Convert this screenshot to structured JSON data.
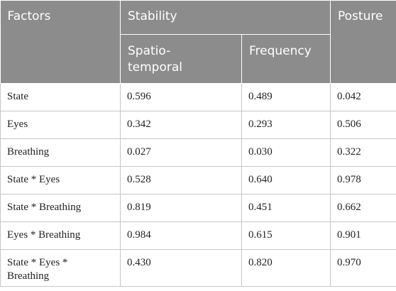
{
  "table": {
    "headers": {
      "factors": "Factors",
      "stability": "Stability",
      "spatio_temporal": "Spatio-\ntemporal",
      "frequency": "Frequency",
      "posture": "Posture"
    },
    "rows": [
      {
        "factor": "State",
        "spatio_temporal": "0.596",
        "frequency": "0.489",
        "posture": "0.042"
      },
      {
        "factor": "Eyes",
        "spatio_temporal": "0.342",
        "frequency": "0.293",
        "posture": "0.506"
      },
      {
        "factor": "Breathing",
        "spatio_temporal": "0.027",
        "frequency": "0.030",
        "posture": "0.322"
      },
      {
        "factor": "State * Eyes",
        "spatio_temporal": "0.528",
        "frequency": "0.640",
        "posture": "0.978"
      },
      {
        "factor": "State * Breathing",
        "spatio_temporal": "0.819",
        "frequency": "0.451",
        "posture": "0.662"
      },
      {
        "factor": "Eyes * Breathing",
        "spatio_temporal": "0.984",
        "frequency": "0.615",
        "posture": "0.901"
      },
      {
        "factor": "State * Eyes *\nBreathing",
        "spatio_temporal": "0.430",
        "frequency": "0.820",
        "posture": "0.970"
      }
    ]
  }
}
